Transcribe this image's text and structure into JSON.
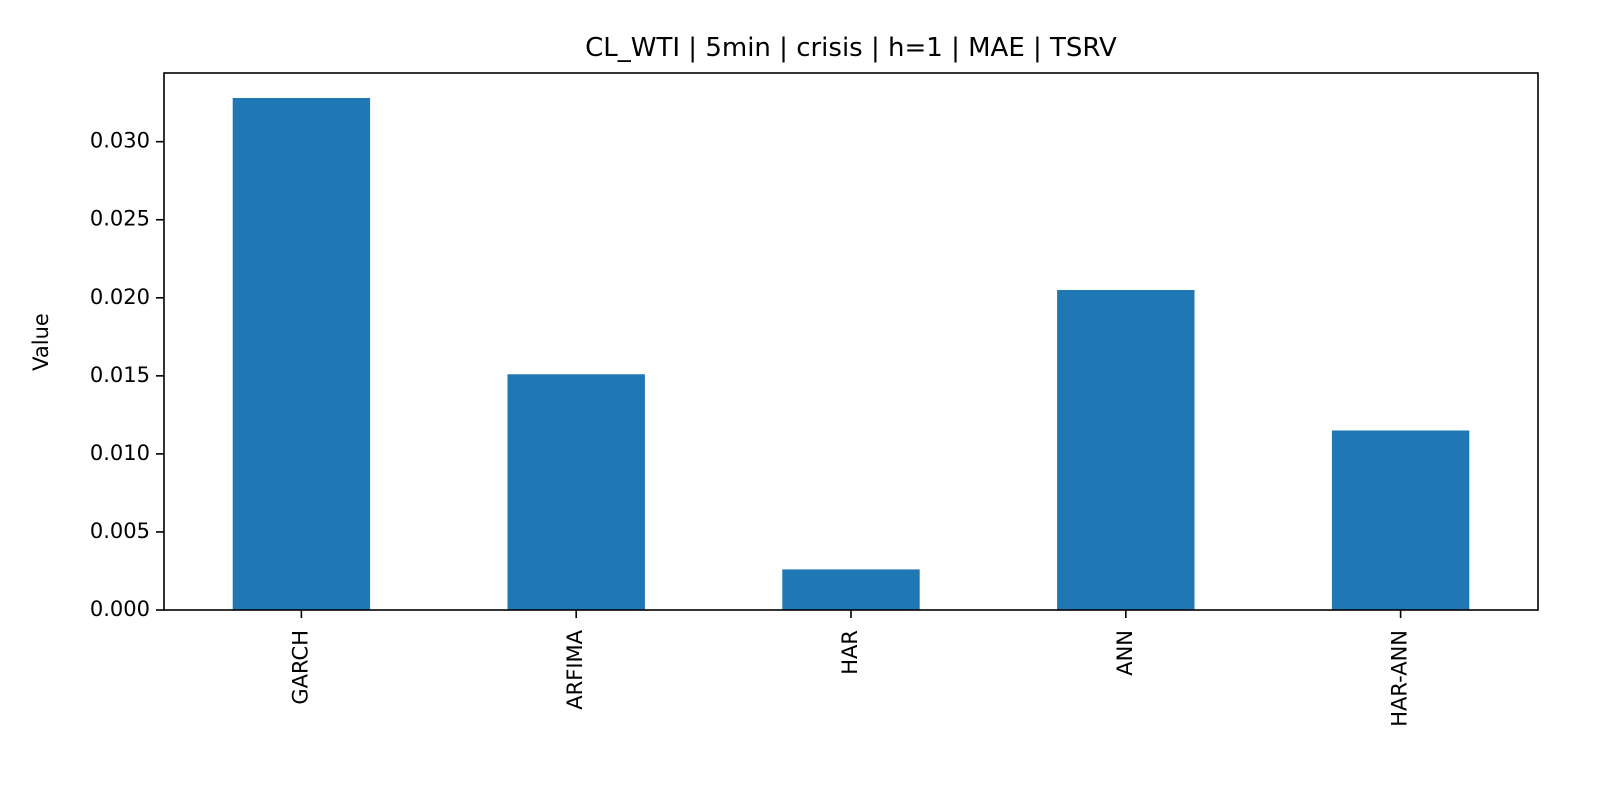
{
  "chart_data": {
    "type": "bar",
    "title": "CL_WTI | 5min | crisis | h=1 | MAE | TSRV",
    "xlabel": "",
    "ylabel": "Value",
    "categories": [
      "GARCH",
      "ARFIMA",
      "HAR",
      "ANN",
      "HAR-ANN"
    ],
    "values": [
      0.0328,
      0.0151,
      0.0026,
      0.0205,
      0.0115
    ],
    "ylim": [
      0,
      0.0344
    ],
    "yticks": [
      "0.000",
      "0.005",
      "0.010",
      "0.015",
      "0.020",
      "0.025",
      "0.030"
    ],
    "bar_color": "#1f77b4",
    "grid": false,
    "legend": "none"
  }
}
